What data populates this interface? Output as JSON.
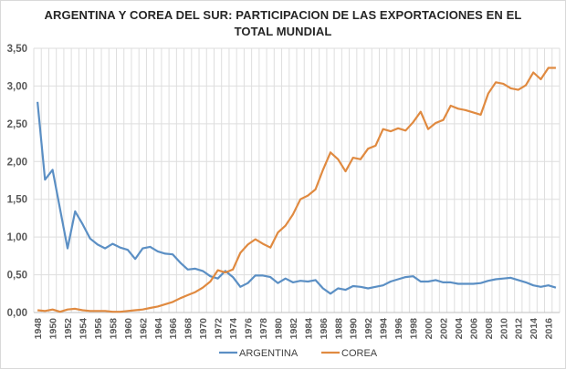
{
  "chart_data": {
    "type": "line",
    "title_line1": "ARGENTINA Y COREA DEL SUR: PARTICIPACION DE LAS EXPORTACIONES EN EL",
    "title_line2": "TOTAL MUNDIAL",
    "xlabel": "",
    "ylabel": "",
    "ylim": [
      0,
      3.5
    ],
    "yticks": [
      "0,00",
      "0,50",
      "1,00",
      "1,50",
      "2,00",
      "2,50",
      "3,00",
      "3,50"
    ],
    "ytick_values": [
      0,
      0.5,
      1,
      1.5,
      2,
      2.5,
      3,
      3.5
    ],
    "x_start": 1948,
    "x_end": 2017,
    "xtick_labels": [
      "1948",
      "1950",
      "1952",
      "1954",
      "1956",
      "1958",
      "1960",
      "1962",
      "1964",
      "1966",
      "1968",
      "1970",
      "1972",
      "1974",
      "1976",
      "1978",
      "1980",
      "1982",
      "1984",
      "1986",
      "1988",
      "1990",
      "1992",
      "1994",
      "1996",
      "1998",
      "2000",
      "2002",
      "2004",
      "2006",
      "2008",
      "2010",
      "2012",
      "2014",
      "2016"
    ],
    "grid": true,
    "legend_position": "bottom",
    "series": [
      {
        "name": "ARGENTINA",
        "color": "#5b8fc4",
        "values": [
          2.79,
          1.76,
          1.89,
          1.37,
          0.85,
          1.34,
          1.17,
          0.98,
          0.9,
          0.85,
          0.91,
          0.86,
          0.83,
          0.71,
          0.85,
          0.87,
          0.81,
          0.78,
          0.77,
          0.66,
          0.57,
          0.58,
          0.55,
          0.48,
          0.45,
          0.55,
          0.47,
          0.34,
          0.39,
          0.49,
          0.49,
          0.47,
          0.39,
          0.45,
          0.4,
          0.42,
          0.41,
          0.43,
          0.32,
          0.25,
          0.32,
          0.3,
          0.35,
          0.34,
          0.32,
          0.34,
          0.36,
          0.41,
          0.44,
          0.47,
          0.48,
          0.41,
          0.41,
          0.43,
          0.4,
          0.4,
          0.38,
          0.38,
          0.38,
          0.39,
          0.42,
          0.44,
          0.45,
          0.46,
          0.43,
          0.4,
          0.36,
          0.34,
          0.36,
          0.33
        ]
      },
      {
        "name": "COREA",
        "color": "#e08a40",
        "values": [
          0.03,
          0.02,
          0.04,
          0.01,
          0.04,
          0.05,
          0.03,
          0.02,
          0.02,
          0.02,
          0.01,
          0.01,
          0.02,
          0.03,
          0.04,
          0.06,
          0.08,
          0.11,
          0.14,
          0.19,
          0.23,
          0.27,
          0.33,
          0.41,
          0.56,
          0.53,
          0.57,
          0.79,
          0.9,
          0.97,
          0.91,
          0.86,
          1.06,
          1.15,
          1.3,
          1.5,
          1.55,
          1.63,
          1.89,
          2.12,
          2.03,
          1.87,
          2.05,
          2.03,
          2.17,
          2.21,
          2.43,
          2.4,
          2.44,
          2.41,
          2.52,
          2.66,
          2.43,
          2.51,
          2.55,
          2.74,
          2.7,
          2.68,
          2.65,
          2.62,
          2.9,
          3.05,
          3.03,
          2.97,
          2.95,
          3.01,
          3.18,
          3.09,
          3.24,
          3.24
        ]
      }
    ]
  }
}
